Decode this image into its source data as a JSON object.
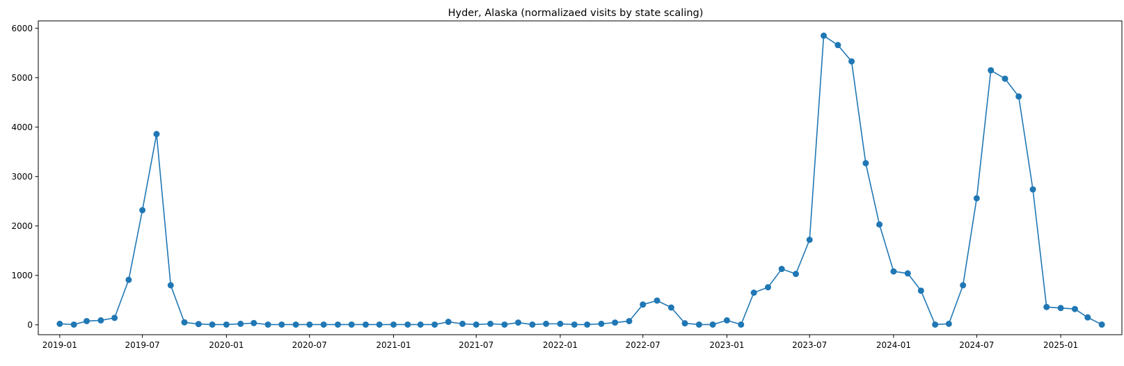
{
  "chart_data": {
    "type": "line",
    "title": "Hyder, Alaska (normalizaed visits by state scaling)",
    "xlabel": "",
    "ylabel": "",
    "x_axis": "date-monthly",
    "xlim": [
      "2018-11-15",
      "2025-05-15"
    ],
    "ylim": [
      -200,
      6150
    ],
    "x_ticks": [
      "2019-01",
      "2019-07",
      "2020-01",
      "2020-07",
      "2021-01",
      "2021-07",
      "2022-01",
      "2022-07",
      "2023-01",
      "2023-07",
      "2024-01",
      "2024-07",
      "2025-01"
    ],
    "y_ticks": [
      0,
      1000,
      2000,
      3000,
      4000,
      5000,
      6000
    ],
    "grid": false,
    "legend": "none",
    "color": "#1f77b4",
    "marker": "circle",
    "series": [
      {
        "x": [
          "2019-01",
          "2019-02",
          "2019-03",
          "2019-04",
          "2019-05",
          "2019-06",
          "2019-07",
          "2019-08",
          "2019-09",
          "2019-10",
          "2019-11",
          "2019-12",
          "2020-01",
          "2020-02",
          "2020-03",
          "2020-04",
          "2020-05",
          "2020-06",
          "2020-07",
          "2020-08",
          "2020-09",
          "2020-10",
          "2020-11",
          "2020-12",
          "2021-01",
          "2021-02",
          "2021-03",
          "2021-04",
          "2021-05",
          "2021-06",
          "2021-07",
          "2021-08",
          "2021-09",
          "2021-10",
          "2021-11",
          "2021-12",
          "2022-01",
          "2022-02",
          "2022-03",
          "2022-04",
          "2022-05",
          "2022-06",
          "2022-07",
          "2022-08",
          "2022-09",
          "2022-10",
          "2022-11",
          "2022-12",
          "2023-01",
          "2023-02",
          "2023-03",
          "2023-04",
          "2023-05",
          "2023-06",
          "2023-07",
          "2023-08",
          "2023-09",
          "2023-10",
          "2023-11",
          "2023-12",
          "2024-01",
          "2024-02",
          "2024-03",
          "2024-04",
          "2024-05",
          "2024-06",
          "2024-07",
          "2024-08",
          "2024-09",
          "2024-10",
          "2024-11",
          "2024-12",
          "2025-01",
          "2025-02",
          "2025-03",
          "2025-04"
        ],
        "values": [
          20,
          5,
          75,
          90,
          140,
          910,
          2320,
          3860,
          800,
          50,
          15,
          5,
          5,
          20,
          35,
          5,
          5,
          5,
          5,
          5,
          5,
          5,
          5,
          5,
          5,
          5,
          5,
          5,
          60,
          20,
          5,
          20,
          5,
          45,
          5,
          20,
          20,
          5,
          5,
          20,
          45,
          75,
          410,
          490,
          350,
          30,
          5,
          5,
          90,
          5,
          650,
          760,
          1130,
          1030,
          1720,
          5850,
          5660,
          5330,
          3270,
          2030,
          1080,
          1040,
          690,
          5,
          20,
          800,
          2560,
          5150,
          4980,
          4620,
          2740,
          360,
          340,
          320,
          150,
          5
        ]
      }
    ]
  }
}
